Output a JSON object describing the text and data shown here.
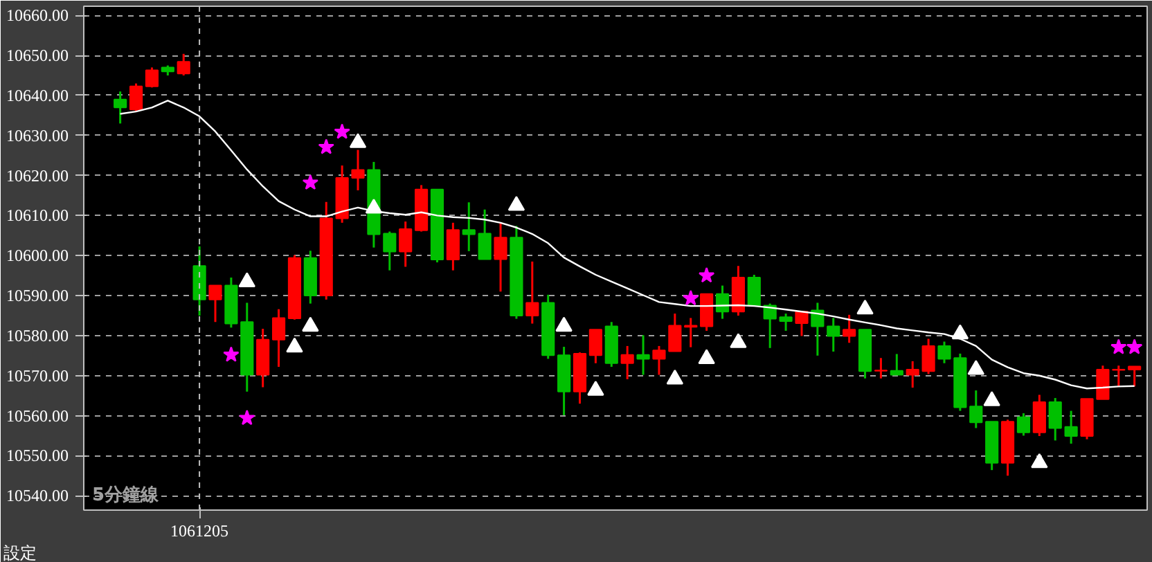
{
  "chart_data": {
    "type": "candlestick",
    "categories": [
      null,
      null,
      null,
      null,
      null,
      "1061205",
      null,
      null,
      null,
      null,
      null,
      null,
      null,
      null,
      null,
      null,
      null,
      null,
      null,
      null,
      null,
      null,
      null,
      null,
      null,
      null,
      null,
      null,
      null,
      null,
      null,
      null,
      null,
      null,
      null,
      null,
      null,
      null,
      null,
      null,
      null,
      null,
      null,
      null,
      null,
      null,
      null,
      null,
      null,
      null,
      null,
      null,
      null,
      null,
      null,
      null,
      null,
      null,
      null,
      null,
      null,
      null,
      null,
      null,
      null
    ],
    "ohlc": [
      [
        10639,
        10641,
        10633,
        10637
      ],
      [
        10636.5,
        10643,
        10636,
        10642.3
      ],
      [
        10642.3,
        10647,
        10642,
        10646.3
      ],
      [
        10647,
        10647.5,
        10645,
        10646
      ],
      [
        10645.5,
        10650.4,
        10645,
        10648.4
      ],
      [
        10597.4,
        10602.3,
        10585,
        10589
      ],
      [
        10589,
        10592.5,
        10583.4,
        10592.5
      ],
      [
        10592.5,
        10594.5,
        10582,
        10583
      ],
      [
        10583.4,
        10588.2,
        10566,
        10570.2
      ],
      [
        10570.2,
        10581.7,
        10567.1,
        10579
      ],
      [
        10579,
        10586.6,
        10572.2,
        10584.4
      ],
      [
        10584.3,
        10600.1,
        10584,
        10599.4
      ],
      [
        10599.4,
        10601.2,
        10588,
        10590
      ],
      [
        10590,
        10613.4,
        10589,
        10609.3
      ],
      [
        10609.3,
        10622.5,
        10608.2,
        10619.4
      ],
      [
        10619.4,
        10626.4,
        10616.3,
        10621.4
      ],
      [
        10621.4,
        10623.4,
        10602,
        10605.3
      ],
      [
        10605.5,
        10606,
        10596.3,
        10601
      ],
      [
        10601,
        10608.5,
        10597.2,
        10606.6
      ],
      [
        10606.3,
        10617.6,
        10606,
        10616.5
      ],
      [
        10616.5,
        10616.5,
        10598.3,
        10599
      ],
      [
        10599,
        10608.2,
        10596.3,
        10606.4
      ],
      [
        10606.4,
        10613.3,
        10601.1,
        10605.3
      ],
      [
        10605.5,
        10611.5,
        10599,
        10599.1
      ],
      [
        10599.1,
        10608.2,
        10591,
        10604.5
      ],
      [
        10604.5,
        10607.4,
        10584.2,
        10585
      ],
      [
        10585,
        10598.5,
        10583,
        10588.2
      ],
      [
        10588.2,
        10590.2,
        10574.2,
        10575.1
      ],
      [
        10575.1,
        10577.2,
        10560.1,
        10566
      ],
      [
        10566,
        10575.8,
        10563,
        10575.5
      ],
      [
        10575.1,
        10581.5,
        10573.1,
        10581.5
      ],
      [
        10582.3,
        10583.4,
        10572.2,
        10573.1
      ],
      [
        10573.1,
        10577.4,
        10569.1,
        10575.2
      ],
      [
        10575.2,
        10580.1,
        10570.2,
        10574.2
      ],
      [
        10574.2,
        10577.4,
        10570.2,
        10576.3
      ],
      [
        10576.1,
        10585.5,
        10576,
        10582.5
      ],
      [
        10582.2,
        10584.4,
        10577.1,
        10582.5
      ],
      [
        10582.3,
        10590.4,
        10581.2,
        10590.4
      ],
      [
        10590.4,
        10592.5,
        10584.2,
        10586
      ],
      [
        10586,
        10597.4,
        10585,
        10594.5
      ],
      [
        10594.5,
        10595.2,
        10587.4,
        10587.5
      ],
      [
        10587.5,
        10588,
        10576.9,
        10584.2
      ],
      [
        10584.6,
        10585.5,
        10581.2,
        10583.6
      ],
      [
        10583.1,
        10586,
        10579.9,
        10586
      ],
      [
        10586.3,
        10588.2,
        10575,
        10582.3
      ],
      [
        10582.3,
        10584.4,
        10576,
        10579.9
      ],
      [
        10579.9,
        10585.2,
        10578.2,
        10581.5
      ],
      [
        10581.5,
        10581.5,
        10569.3,
        10571.1
      ],
      [
        10571.2,
        10574.4,
        10569.3,
        10571.3
      ],
      [
        10571.2,
        10575.4,
        10570.2,
        10570.2
      ],
      [
        10570.2,
        10573.6,
        10567,
        10571.5
      ],
      [
        10571.1,
        10579.2,
        10570.4,
        10577.4
      ],
      [
        10577.4,
        10578.5,
        10573.1,
        10574.2
      ],
      [
        10574.4,
        10575.5,
        10561.2,
        10562.1
      ],
      [
        10562.3,
        10566.3,
        10556.9,
        10558.3
      ],
      [
        10558.5,
        10558.5,
        10546.4,
        10548.2
      ],
      [
        10548.2,
        10559,
        10545,
        10558.5
      ],
      [
        10559.6,
        10560.6,
        10555,
        10555.8
      ],
      [
        10555.8,
        10565.2,
        10554.9,
        10563.4
      ],
      [
        10563.4,
        10564.4,
        10553.8,
        10556.9
      ],
      [
        10557.2,
        10561.2,
        10553,
        10554.9
      ],
      [
        10554.9,
        10564.2,
        10554.1,
        10564.2
      ],
      [
        10564.1,
        10572.5,
        10564.1,
        10571.5
      ],
      [
        10571.4,
        10572.5,
        10567.3,
        10571.5
      ],
      [
        10571.5,
        10572.3,
        10567.3,
        10572.3
      ]
    ],
    "colors": [
      "#00c000",
      "#ff0000",
      "#ff0000",
      "#00c000",
      "#ff0000",
      "#00c000",
      "#ff0000",
      "#00c000",
      "#00c000",
      "#ff0000",
      "#ff0000",
      "#ff0000",
      "#00c000",
      "#ff0000",
      "#ff0000",
      "#ff0000",
      "#00c000",
      "#00c000",
      "#ff0000",
      "#ff0000",
      "#00c000",
      "#ff0000",
      "#00c000",
      "#00c000",
      "#ff0000",
      "#00c000",
      "#ff0000",
      "#00c000",
      "#00c000",
      "#ff0000",
      "#ff0000",
      "#00c000",
      "#ff0000",
      "#00c000",
      "#ff0000",
      "#ff0000",
      "#ff0000",
      "#ff0000",
      "#00c000",
      "#ff0000",
      "#00c000",
      "#00c000",
      "#00c000",
      "#ff0000",
      "#00c000",
      "#00c000",
      "#ff0000",
      "#00c000",
      "#ff0000",
      "#00c000",
      "#ff0000",
      "#ff0000",
      "#00c000",
      "#00c000",
      "#00c000",
      "#00c000",
      "#ff0000",
      "#00c000",
      "#ff0000",
      "#00c000",
      "#00c000",
      "#ff0000",
      "#ff0000",
      "#ff0000",
      "#ff0000"
    ],
    "series": [
      {
        "type": "line",
        "color": "#ffffff",
        "values": [
          10635.4,
          10636.0,
          10637.0,
          10638.7,
          10637.0,
          10634.8,
          10631.0,
          10626.3,
          10621.5,
          10617.3,
          10613.6,
          10611.5,
          10609.8,
          10609.8,
          10611.0,
          10612.0,
          10611.1,
          10610.6,
          10610.2,
          10610.8,
          10610.0,
          10609.6,
          10609.4,
          10609.0,
          10608.2,
          10607.0,
          10605.4,
          10603.1,
          10599.5,
          10597.3,
          10595.2,
          10593.5,
          10591.8,
          10590.1,
          10588.4,
          10587.9,
          10587.4,
          10587.4,
          10587.5,
          10587.6,
          10587.4,
          10587.0,
          10586.5,
          10586.0,
          10585.5,
          10584.8,
          10584.0,
          10583.3,
          10582.6,
          10581.8,
          10581.3,
          10580.8,
          10580.4,
          10579.2,
          10577.4,
          10574.0,
          10572.1,
          10570.6,
          10570.0,
          10569.0,
          10567.6,
          10566.8,
          10567.0,
          10567.3,
          10567.4
        ]
      },
      {
        "type": "scatter",
        "marker": "star",
        "color": "#ff00ff",
        "values": [
          null,
          null,
          null,
          null,
          null,
          null,
          null,
          10575.2,
          10559.4,
          null,
          null,
          null,
          10618.2,
          10627.1,
          10630.9,
          null,
          null,
          null,
          null,
          null,
          null,
          null,
          null,
          null,
          null,
          null,
          null,
          null,
          null,
          null,
          null,
          null,
          null,
          null,
          null,
          null,
          10589.3,
          10595,
          null,
          null,
          null,
          null,
          null,
          null,
          null,
          null,
          null,
          null,
          null,
          null,
          null,
          null,
          null,
          null,
          null,
          null,
          null,
          null,
          null,
          null,
          null,
          null,
          null,
          10577.1,
          10577.1
        ]
      },
      {
        "type": "scatter",
        "marker": "triangle",
        "color": "#ffffff",
        "values": [
          null,
          null,
          null,
          null,
          null,
          null,
          null,
          null,
          null,
          null,
          null,
          null,
          null,
          null,
          null,
          10628.2,
          10611.8,
          null,
          null,
          null,
          null,
          null,
          null,
          null,
          null,
          null,
          null,
          null,
          null,
          null,
          null,
          null,
          null,
          null,
          null,
          null,
          null,
          null,
          null,
          null,
          null,
          null,
          null,
          null,
          null,
          null,
          null,
          10586.6,
          null,
          null,
          null,
          null,
          null,
          10580.4,
          10571.5,
          10563.7,
          null,
          null,
          null,
          null,
          null,
          null,
          null,
          null,
          null
        ]
      },
      {
        "type": "scatter",
        "marker": "triangle",
        "color": "#ffffff",
        "values": [
          null,
          null,
          null,
          null,
          null,
          null,
          null,
          null,
          10593.4,
          null,
          null,
          null,
          null,
          null,
          null,
          null,
          null,
          null,
          null,
          null,
          null,
          null,
          null,
          null,
          null,
          10612.5,
          null,
          null,
          10582.3,
          null,
          null,
          null,
          null,
          null,
          null,
          null,
          null,
          null,
          null,
          null,
          null,
          null,
          null,
          null,
          null,
          null,
          null,
          null,
          null,
          null,
          null,
          null,
          null,
          null,
          null,
          null,
          null,
          null,
          null,
          null,
          null,
          null,
          null,
          null,
          null
        ]
      },
      {
        "type": "scatter",
        "marker": "triangle",
        "color": "#ffffff",
        "values": [
          null,
          null,
          null,
          null,
          null,
          null,
          null,
          null,
          null,
          null,
          null,
          10577.1,
          null,
          null,
          null,
          null,
          null,
          null,
          null,
          null,
          null,
          null,
          null,
          null,
          null,
          null,
          null,
          null,
          null,
          null,
          10566.3,
          null,
          null,
          null,
          null,
          10569.1,
          null,
          null,
          null,
          10578.2,
          null,
          null,
          null,
          null,
          null,
          null,
          null,
          null,
          null,
          null,
          null,
          null,
          null,
          null,
          null,
          null,
          null,
          null,
          10548.2,
          null,
          null,
          null,
          null,
          null,
          null
        ]
      },
      {
        "type": "scatter",
        "marker": "triangle",
        "color": "#ffffff",
        "values": [
          null,
          null,
          null,
          null,
          null,
          null,
          null,
          null,
          null,
          null,
          null,
          null,
          10582.3,
          null,
          null,
          null,
          null,
          null,
          null,
          null,
          null,
          null,
          null,
          null,
          null,
          null,
          null,
          null,
          null,
          null,
          null,
          null,
          null,
          null,
          null,
          null,
          null,
          10574.2,
          null,
          null,
          null,
          null,
          null,
          null,
          null,
          null,
          null,
          null,
          null,
          null,
          null,
          null,
          null,
          null,
          null,
          null,
          null,
          null,
          null,
          null,
          null,
          null,
          null,
          null,
          null
        ]
      }
    ],
    "ylim": [
      10536.4,
      10662.3
    ],
    "yticks": [
      {
        "value": 10540,
        "label": "10540.00"
      },
      {
        "value": 10550,
        "label": "10550.00"
      },
      {
        "value": 10560,
        "label": "10560.00"
      },
      {
        "value": 10570,
        "label": "10570.00"
      },
      {
        "value": 10580,
        "label": "10580.00"
      },
      {
        "value": 10590,
        "label": "10590.00"
      },
      {
        "value": 10600,
        "label": "10600.00"
      },
      {
        "value": 10610,
        "label": "10610.00"
      },
      {
        "value": 10620,
        "label": "10620.00"
      },
      {
        "value": 10630,
        "label": "10630.00"
      },
      {
        "value": 10640,
        "label": "10640.00"
      },
      {
        "value": 10650,
        "label": "10650.00"
      },
      {
        "value": 10660,
        "label": "10660.00"
      }
    ],
    "grid": "y",
    "ref_lines": [
      {
        "axis": "x",
        "value": "1061205",
        "color": "#c0c0c0",
        "line_style": "dashed"
      }
    ],
    "annotations": [
      "5分鐘線",
      "設定"
    ]
  }
}
